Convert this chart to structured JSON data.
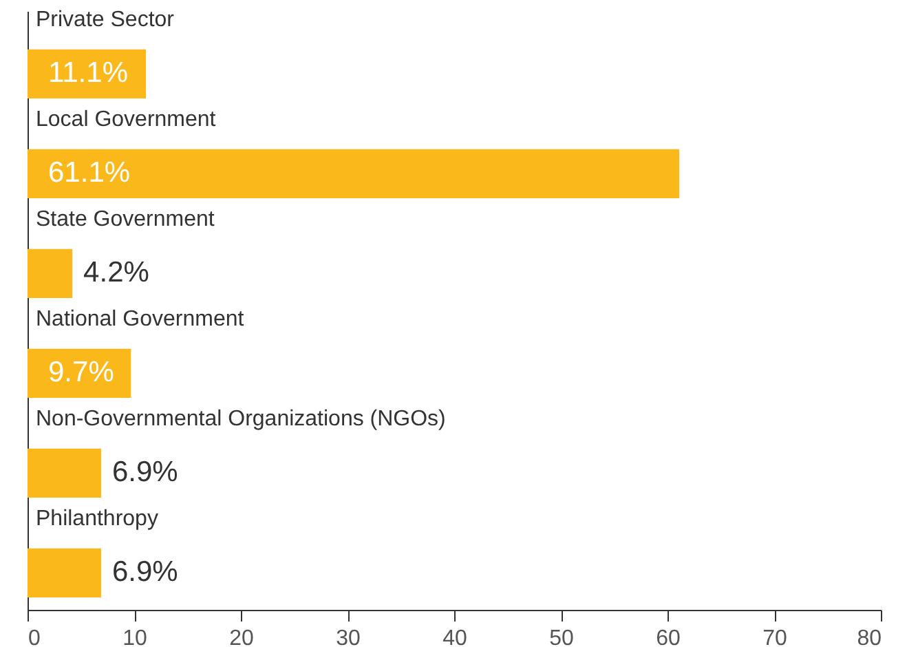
{
  "chart_data": {
    "type": "bar",
    "orientation": "horizontal",
    "categories": [
      "Private Sector",
      "Local Government",
      "State Government",
      "National Government",
      "Non-Governmental Organizations (NGOs)",
      "Philanthropy"
    ],
    "values": [
      11.1,
      61.1,
      4.2,
      9.7,
      6.9,
      6.9
    ],
    "value_labels": [
      "11.1%",
      "61.1%",
      "4.2%",
      "9.7%",
      "6.9%",
      "6.9%"
    ],
    "color": "#fbb81b",
    "xlim": [
      0,
      80
    ],
    "xticks": [
      0,
      10,
      20,
      30,
      40,
      50,
      60,
      70,
      80
    ],
    "grid": false
  }
}
